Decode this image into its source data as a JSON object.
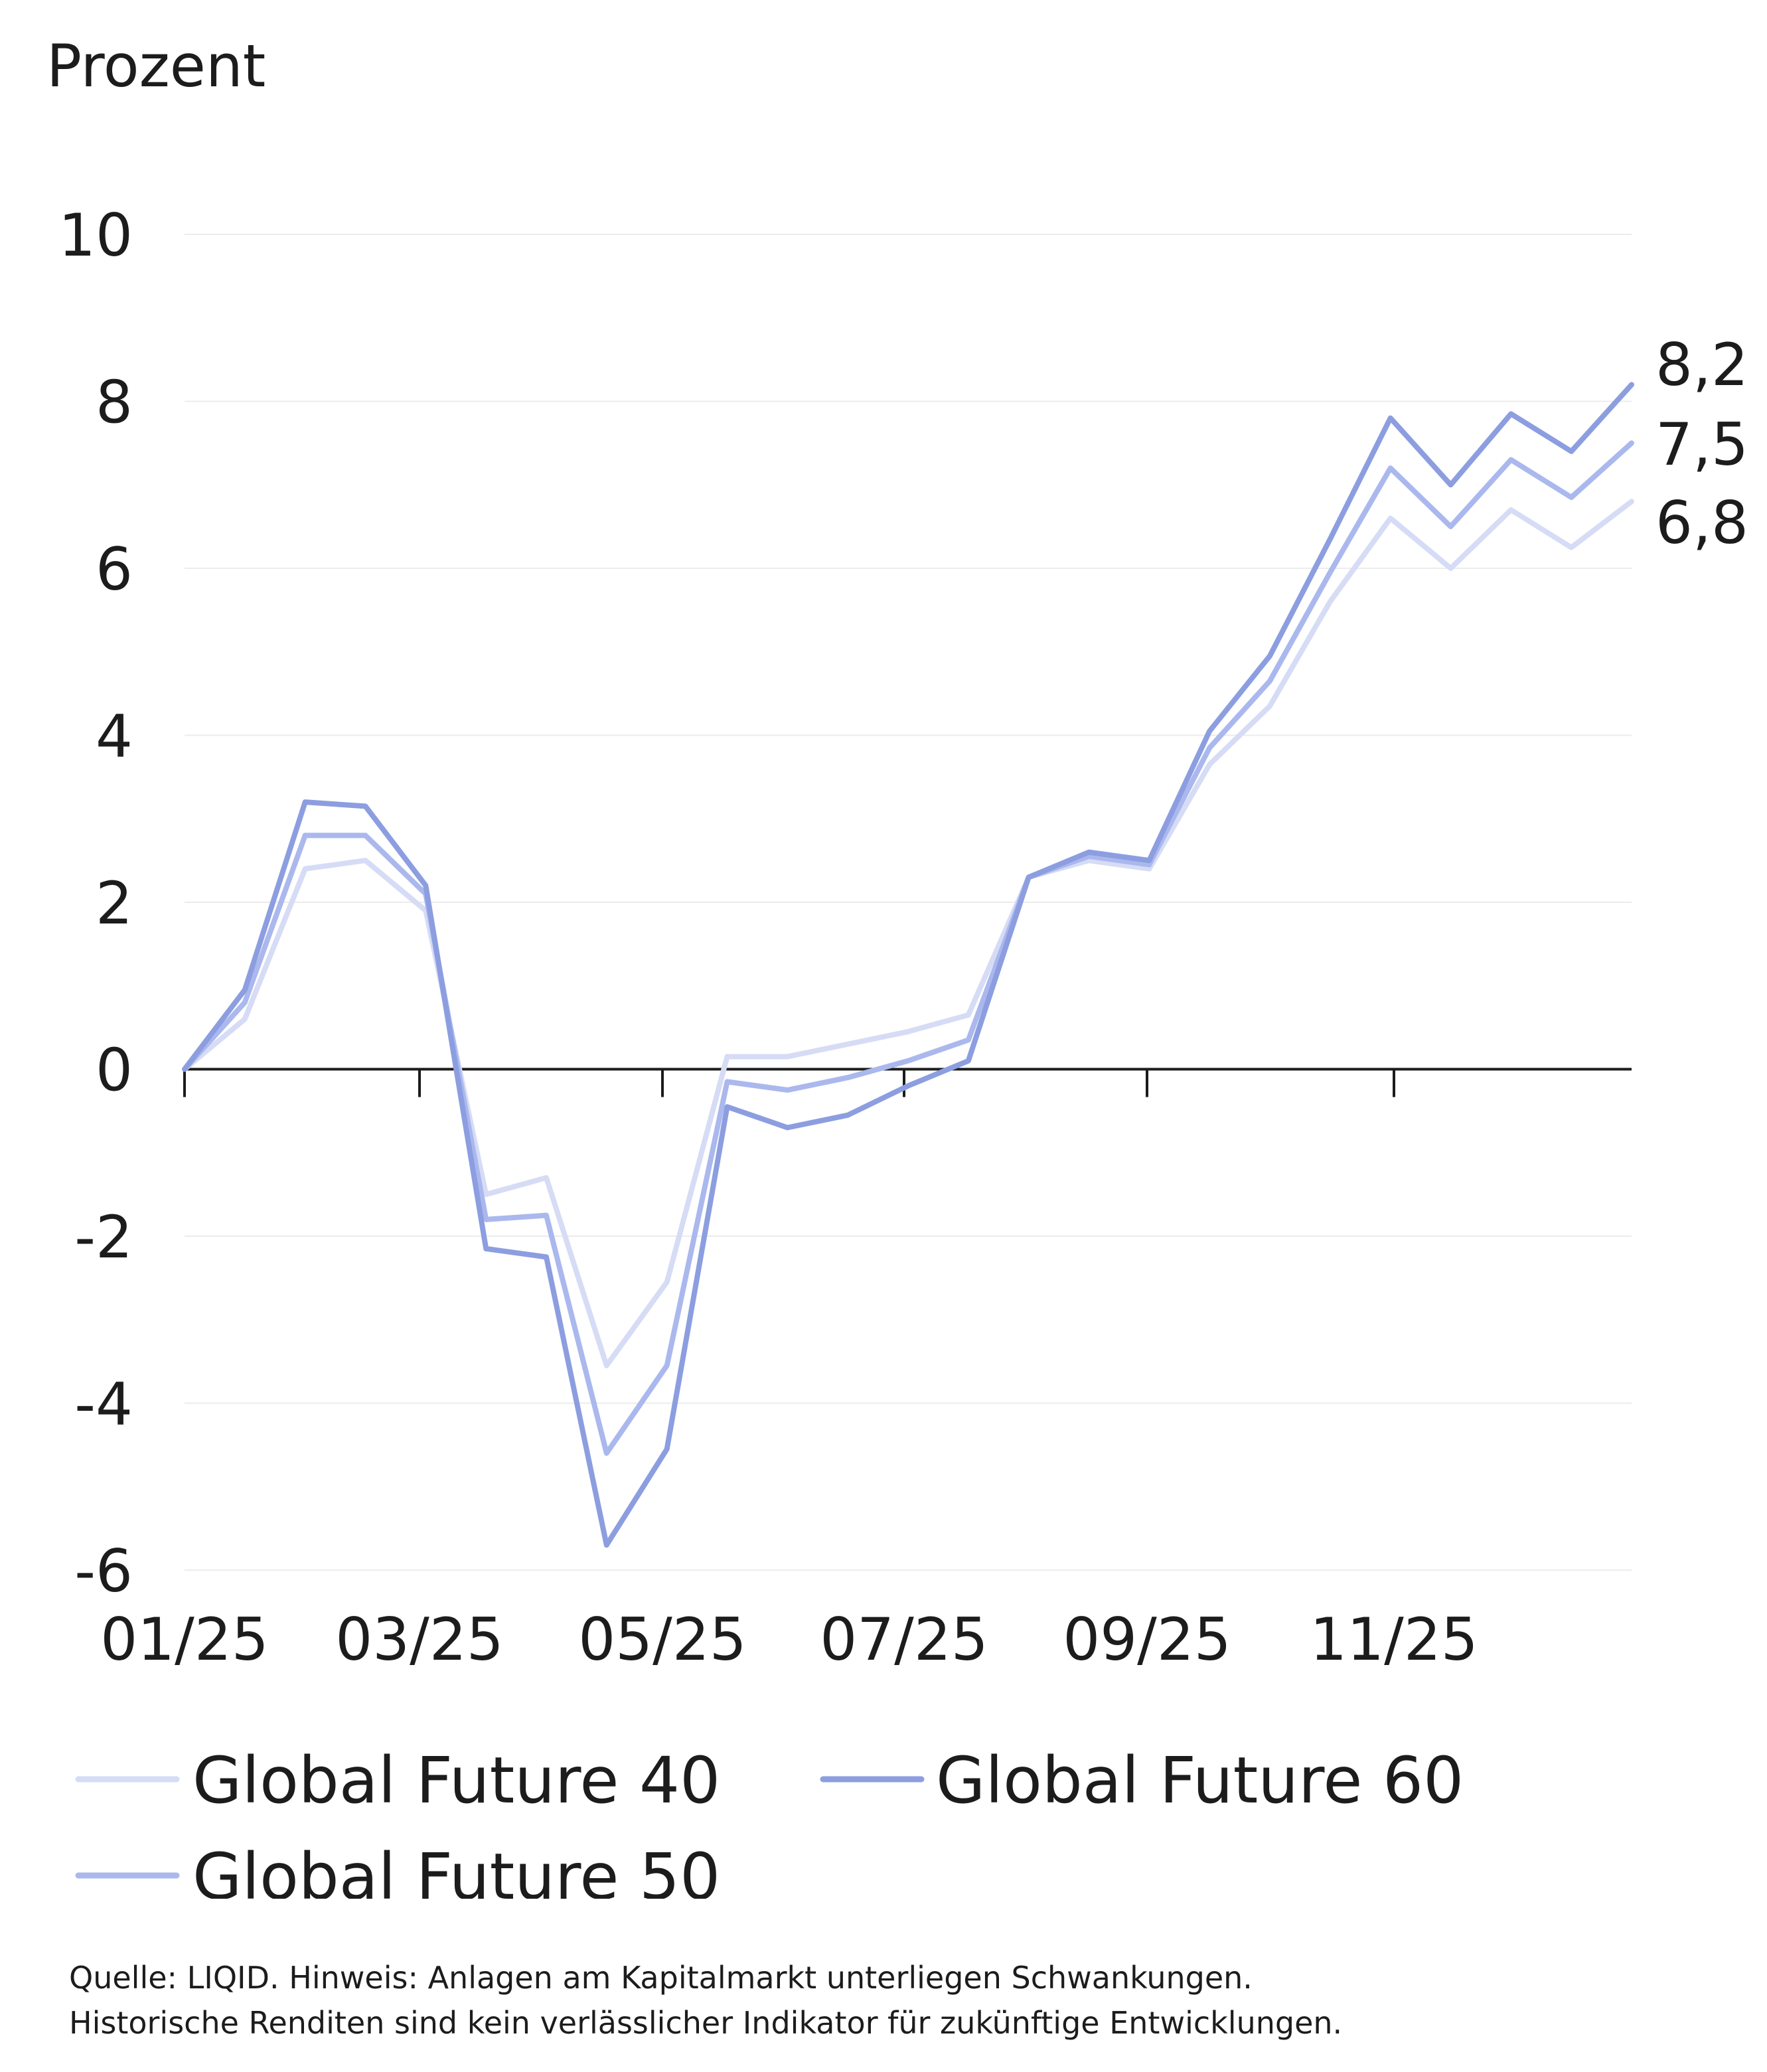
{
  "chart_data": {
    "type": "line",
    "unit_label": "Prozent",
    "ylim": [
      -6,
      10
    ],
    "yticks": [
      10,
      8,
      6,
      4,
      2,
      0,
      -2,
      -4,
      -6
    ],
    "ytick_labels": [
      "10",
      "8",
      "6",
      "4",
      "2",
      "0",
      "-2",
      "-4",
      "-6"
    ],
    "x_ticks": [
      "01/25",
      "03/25",
      "05/25",
      "07/25",
      "09/25",
      "11/25"
    ],
    "grid": true,
    "legend_position": "bottom",
    "series": [
      {
        "name": "Global Future 40",
        "color": "#d6dcf5",
        "end_label": "6,8",
        "values": [
          0,
          0.6,
          2.4,
          2.5,
          1.9,
          -1.5,
          -1.3,
          -3.55,
          -2.55,
          0.15,
          0.15,
          0.3,
          0.45,
          0.65,
          2.3,
          2.5,
          2.4,
          3.65,
          4.35,
          5.6,
          6.6,
          6.0,
          6.7,
          6.25,
          6.8
        ]
      },
      {
        "name": "Global Future 60",
        "color": "#8c9ee0",
        "end_label": "8,2",
        "values": [
          0,
          0.95,
          3.2,
          3.15,
          2.2,
          -2.15,
          -2.25,
          -5.7,
          -4.55,
          -0.45,
          -0.7,
          -0.55,
          -0.2,
          0.1,
          2.3,
          2.6,
          2.5,
          4.05,
          4.95,
          6.35,
          7.8,
          7.0,
          7.85,
          7.4,
          8.2
        ]
      },
      {
        "name": "Global Future 50",
        "color": "#aab8ee",
        "end_label": "7,5",
        "values": [
          0,
          0.8,
          2.8,
          2.8,
          2.1,
          -1.8,
          -1.75,
          -4.6,
          -3.55,
          -0.15,
          -0.25,
          -0.1,
          0.1,
          0.35,
          2.3,
          2.55,
          2.45,
          3.85,
          4.65,
          5.95,
          7.2,
          6.5,
          7.3,
          6.85,
          7.5
        ]
      }
    ],
    "source_lines": [
      "Quelle: LIQID. Hinweis: Anlagen am Kapitalmarkt unterliegen Schwankungen.",
      "Historische Renditen sind kein verlässlicher Indikator für zukünftige Entwicklungen."
    ]
  }
}
